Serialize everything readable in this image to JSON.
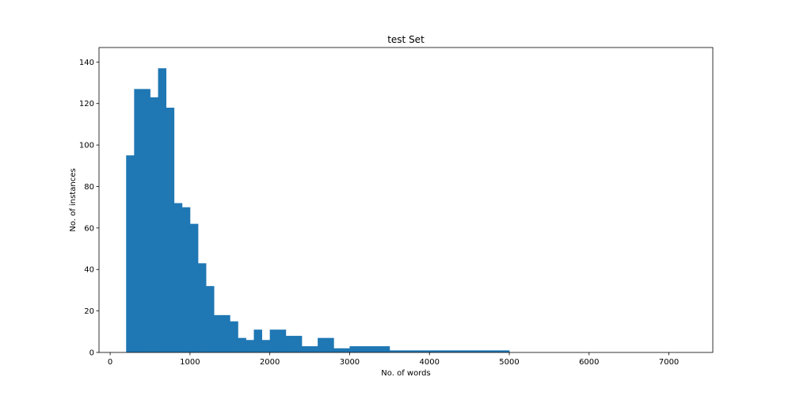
{
  "chart_data": {
    "type": "bar",
    "subtype": "histogram",
    "title": "test Set",
    "xlabel": "No. of words",
    "ylabel": "No. of instances",
    "xlim": [
      -140,
      7550
    ],
    "ylim": [
      0,
      147
    ],
    "xticks": [
      0,
      1000,
      2000,
      3000,
      4000,
      5000,
      6000,
      7000
    ],
    "yticks": [
      0,
      20,
      40,
      60,
      80,
      100,
      120,
      140
    ],
    "grid": false,
    "legend": "none",
    "bar_color": "#1f77b4",
    "bins": [
      {
        "start": 200,
        "end": 300,
        "value": 95
      },
      {
        "start": 300,
        "end": 400,
        "value": 127
      },
      {
        "start": 400,
        "end": 500,
        "value": 127
      },
      {
        "start": 500,
        "end": 600,
        "value": 123
      },
      {
        "start": 600,
        "end": 700,
        "value": 137
      },
      {
        "start": 700,
        "end": 800,
        "value": 118
      },
      {
        "start": 800,
        "end": 900,
        "value": 72
      },
      {
        "start": 900,
        "end": 1000,
        "value": 70
      },
      {
        "start": 1000,
        "end": 1100,
        "value": 62
      },
      {
        "start": 1100,
        "end": 1200,
        "value": 43
      },
      {
        "start": 1200,
        "end": 1300,
        "value": 32
      },
      {
        "start": 1300,
        "end": 1400,
        "value": 18
      },
      {
        "start": 1400,
        "end": 1500,
        "value": 18
      },
      {
        "start": 1500,
        "end": 1600,
        "value": 15
      },
      {
        "start": 1600,
        "end": 1700,
        "value": 7
      },
      {
        "start": 1700,
        "end": 1800,
        "value": 6
      },
      {
        "start": 1800,
        "end": 1900,
        "value": 11
      },
      {
        "start": 1900,
        "end": 2000,
        "value": 6
      },
      {
        "start": 2000,
        "end": 2100,
        "value": 11
      },
      {
        "start": 2100,
        "end": 2200,
        "value": 11
      },
      {
        "start": 2200,
        "end": 2300,
        "value": 8
      },
      {
        "start": 2300,
        "end": 2400,
        "value": 8
      },
      {
        "start": 2400,
        "end": 2500,
        "value": 3
      },
      {
        "start": 2500,
        "end": 2600,
        "value": 3
      },
      {
        "start": 2600,
        "end": 2700,
        "value": 7
      },
      {
        "start": 2700,
        "end": 2800,
        "value": 7
      },
      {
        "start": 2800,
        "end": 2900,
        "value": 2
      },
      {
        "start": 2900,
        "end": 3000,
        "value": 2
      },
      {
        "start": 3000,
        "end": 3500,
        "value": 3
      },
      {
        "start": 3500,
        "end": 5000,
        "value": 1
      }
    ]
  }
}
